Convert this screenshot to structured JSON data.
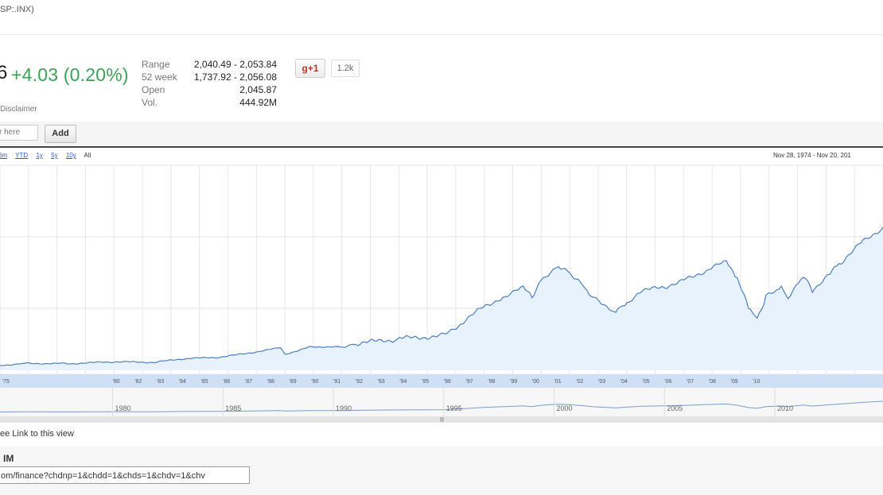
{
  "header": {
    "ticker": "SP:.INX)",
    "big_char": "6",
    "change": "+4.03 (0.20%)"
  },
  "stats": [
    {
      "label": "Range",
      "value": "2,040.49 - 2,053.84"
    },
    {
      "label": "52 week",
      "value": "1,737.92 - 2,056.08"
    },
    {
      "label": "Open",
      "value": "2,045.87"
    },
    {
      "label": "Vol.",
      "value": "444.92M"
    }
  ],
  "social": {
    "plus_label": "+1",
    "count": "1.2k"
  },
  "disclaimer": "Disclaimer",
  "compare": {
    "placeholder": "r here",
    "add_label": "Add"
  },
  "zoom": {
    "options": [
      "6m",
      "YTD",
      "1y",
      "5y",
      "10y"
    ],
    "current": "All"
  },
  "date_range": "Nov 28, 1974  -  Nov 20, 201",
  "colors": {
    "line": "#4a7fc1",
    "fill": "#e8f2fc",
    "axis_band": "#cfe0f6",
    "positive": "#3aa357"
  },
  "chart_data": {
    "type": "area",
    "x": [
      1974.9,
      1976,
      1978,
      1980,
      1982,
      1983,
      1985,
      1987.6,
      1987.8,
      1989,
      1990.5,
      1991,
      1993,
      1995,
      1996,
      1997,
      1997.8,
      1998.6,
      1999,
      1999.5,
      2000.2,
      2000.7,
      2001.3,
      2001.7,
      2002.5,
      2002.8,
      2003.2,
      2004,
      2005,
      2006,
      2007,
      2007.8,
      2008.3,
      2008.8,
      2009.2,
      2009.6,
      2010.3,
      2010.6,
      2011.3,
      2011.7,
      2012.5,
      2013,
      2014,
      2014.9
    ],
    "y": [
      70,
      100,
      95,
      120,
      115,
      160,
      190,
      320,
      230,
      340,
      330,
      380,
      450,
      500,
      720,
      950,
      1060,
      1180,
      1050,
      1330,
      1500,
      1400,
      1250,
      1050,
      900,
      820,
      950,
      1130,
      1200,
      1300,
      1450,
      1550,
      1300,
      900,
      750,
      1050,
      1170,
      1050,
      1350,
      1150,
      1400,
      1550,
      1850,
      2050
    ],
    "axis_years": [
      "'75",
      "'80",
      "'82",
      "'83",
      "'84",
      "'85",
      "'86",
      "'87",
      "'88",
      "'89",
      "'90",
      "'91",
      "'92",
      "'93",
      "'94",
      "'95",
      "'96",
      "'97",
      "'98",
      "'99",
      "'00",
      "'01",
      "'02",
      "'03",
      "'04",
      "'05",
      "'06",
      "'07",
      "'08",
      "'09",
      "'10"
    ],
    "navigator_labels": [
      "1980",
      "1985",
      "1990",
      "1995",
      "2000",
      "2005",
      "2010"
    ]
  },
  "footer": {
    "link_view": "ee Link to this view",
    "im_label": "IM",
    "url": "om/finance?chdnp=1&chdd=1&chds=1&chdv=1&chv"
  }
}
